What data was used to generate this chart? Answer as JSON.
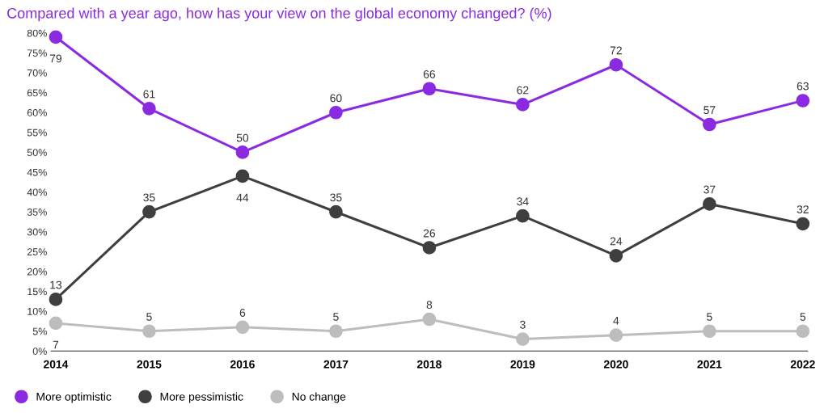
{
  "chart_data": {
    "type": "line",
    "title": "Compared with a year ago, how has your view on the global economy changed? (%)",
    "categories": [
      "2014",
      "2015",
      "2016",
      "2017",
      "2018",
      "2019",
      "2020",
      "2021",
      "2022"
    ],
    "series": [
      {
        "name": "More optimistic",
        "color": "#8a2be2",
        "values": [
          79,
          61,
          50,
          60,
          66,
          62,
          72,
          57,
          63
        ]
      },
      {
        "name": "More pessimistic",
        "color": "#3f3f3f",
        "values": [
          13,
          35,
          44,
          35,
          26,
          34,
          24,
          37,
          32
        ]
      },
      {
        "name": "No change",
        "color": "#bdbdbd",
        "values": [
          7,
          5,
          6,
          5,
          8,
          3,
          4,
          5,
          5
        ]
      }
    ],
    "ylim": [
      0,
      80
    ],
    "yticks": [
      {
        "value": 0,
        "label": "0%"
      },
      {
        "value": 5,
        "label": "5%"
      },
      {
        "value": 10,
        "label": "10%"
      },
      {
        "value": 15,
        "label": "15%"
      },
      {
        "value": 20,
        "label": "20%"
      },
      {
        "value": 25,
        "label": "25%"
      },
      {
        "value": 30,
        "label": "30%"
      },
      {
        "value": 35,
        "label": "35%"
      },
      {
        "value": 40,
        "label": "40%"
      },
      {
        "value": 45,
        "label": "45%"
      },
      {
        "value": 50,
        "label": "50%"
      },
      {
        "value": 55,
        "label": "55%"
      },
      {
        "value": 60,
        "label": "60%"
      },
      {
        "value": 65,
        "label": "65%"
      },
      {
        "value": 70,
        "label": "70%"
      },
      {
        "value": 75,
        "label": "75%"
      },
      {
        "value": 80,
        "label": "80%"
      }
    ],
    "data_labels": true,
    "grid": false,
    "legend": "bottom left",
    "marker": "circle",
    "line_style": "solid"
  }
}
